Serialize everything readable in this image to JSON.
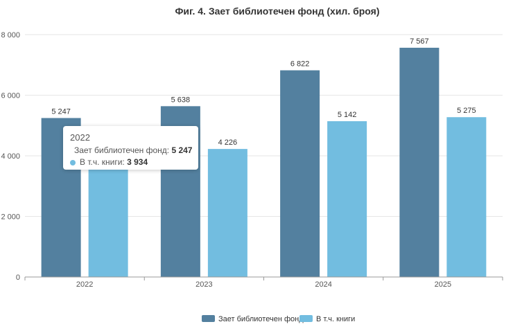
{
  "chart_data": {
    "type": "bar",
    "title": "Фиг. 4. Зает библиотечен фонд (хил. броя)",
    "categories": [
      "2022",
      "2023",
      "2024",
      "2025"
    ],
    "series": [
      {
        "name": "Зает библиотечен фонд",
        "color": "#53809f",
        "values": [
          5247,
          5638,
          6822,
          7567
        ],
        "labels": [
          "5 247",
          "5 638",
          "6 822",
          "7 567"
        ]
      },
      {
        "name": "В т.ч. книги",
        "color": "#72bde0",
        "values": [
          3934,
          4226,
          5142,
          5275
        ],
        "labels": [
          "3 934",
          "4 226",
          "5 142",
          "5 275"
        ]
      }
    ],
    "ylim": [
      0,
      8000
    ],
    "yticks": [
      0,
      2000,
      4000,
      6000,
      8000
    ],
    "ytick_labels": [
      "0",
      "2 000",
      "4 000",
      "6 000",
      "8 000"
    ],
    "grid": true,
    "legend_position": "bottom-center"
  },
  "tooltip": {
    "title": "2022",
    "rows": [
      {
        "label": "Зает библиотечен фонд:",
        "value": "5 247",
        "color": "#53809f"
      },
      {
        "label": "В т.ч. книги:",
        "value": "3 934",
        "color": "#72bde0"
      }
    ]
  }
}
